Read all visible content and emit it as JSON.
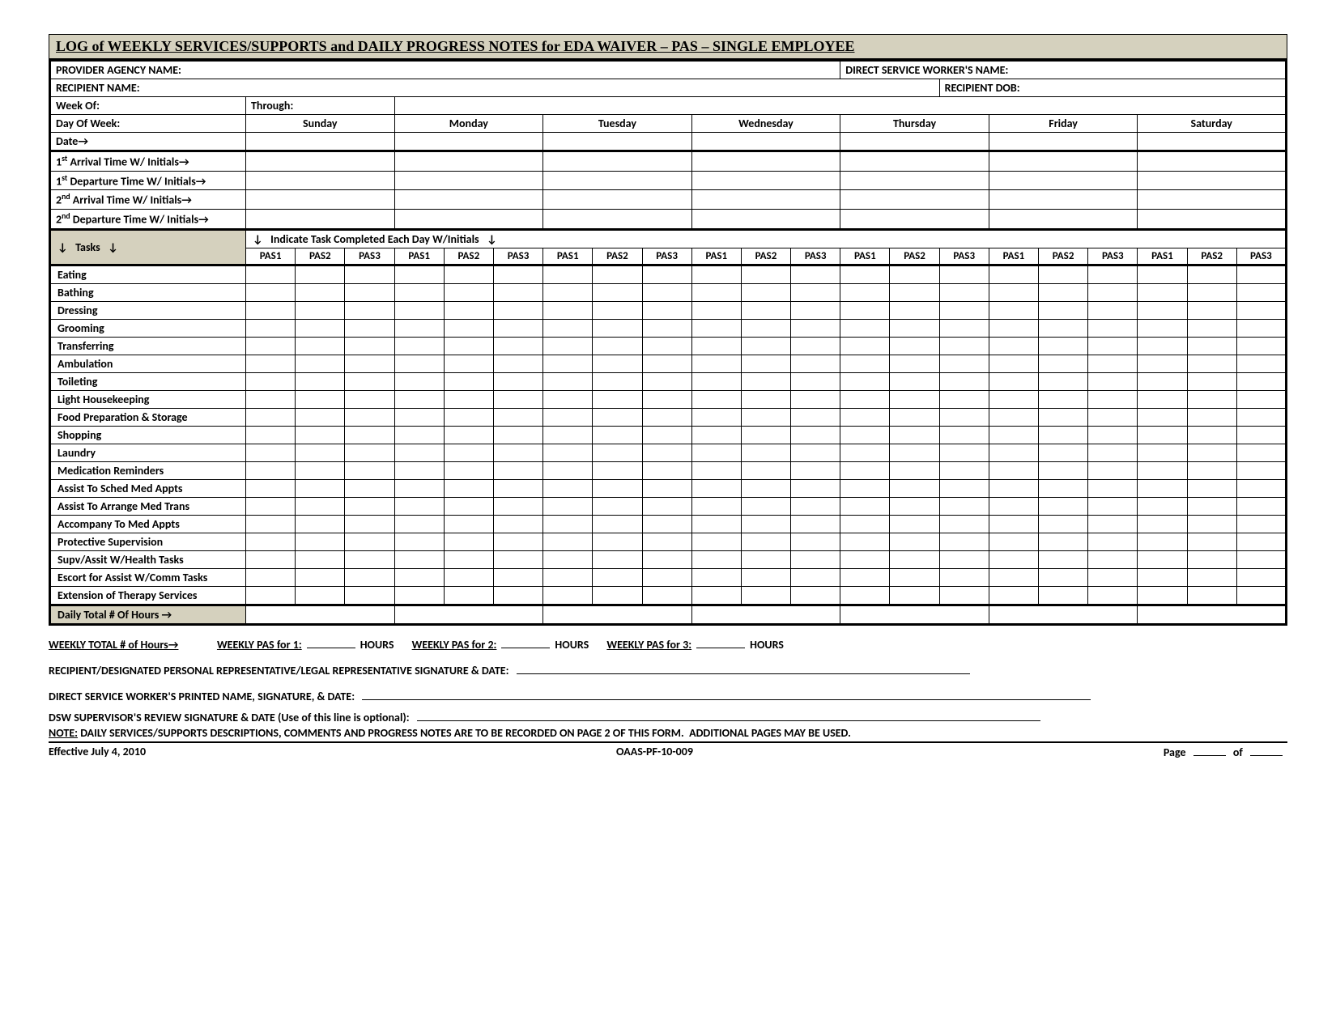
{
  "colors": {
    "shade": "#d5d1be",
    "border": "#000000",
    "bg": "#ffffff"
  },
  "title": "LOG of WEEKLY SERVICES/SUPPORTS and DAILY PROGRESS NOTES for EDA WAIVER – PAS – SINGLE EMPLOYEE",
  "header": {
    "provider_agency_label": "PROVIDER AGENCY NAME:",
    "dsw_name_label": "DIRECT SERVICE WORKER'S NAME:",
    "recipient_name_label": "RECIPIENT NAME:",
    "recipient_dob_label": "RECIPIENT DOB:",
    "week_of_label": "Week Of:",
    "through_label": "Through:",
    "day_of_week_label": "Day Of Week:",
    "date_label": "Date→"
  },
  "days": [
    "Sunday",
    "Monday",
    "Tuesday",
    "Wednesday",
    "Thursday",
    "Friday",
    "Saturday"
  ],
  "time_rows": [
    "1<sup>st</sup> Arrival Time W/ Initials→",
    "1<sup>st</sup> Departure Time W/ Initials→",
    "2<sup>nd</sup> Arrival Time W/ Initials→",
    "2<sup>nd</sup> Departure Time W/ Initials→"
  ],
  "tasks_corner": "↓   Tasks   ↓",
  "tasks_instruction": "↓   Indicate Task Completed Each Day W/Initials   ↓",
  "pas_labels": [
    "PAS1",
    "PAS2",
    "PAS3"
  ],
  "tasks": [
    "Eating",
    "Bathing",
    "Dressing",
    "Grooming",
    "Transferring",
    "Ambulation",
    "Toileting",
    "Light Housekeeping",
    "Food Preparation & Storage",
    "Shopping",
    "Laundry",
    "Medication Reminders",
    "Assist To Sched Med Appts",
    "Assist To Arrange Med Trans",
    "Accompany To Med Appts",
    "Protective Supervision",
    "Supv/Assit W/Health Tasks",
    "Escort for Assist W/Comm Tasks",
    "Extension of Therapy Services"
  ],
  "daily_total_label": "Daily Total # Of Hours →",
  "weekly": {
    "total_label": "WEEKLY TOTAL # of Hours→",
    "pas1_label": "WEEKLY PAS for 1:",
    "pas2_label": "WEEKLY PAS for 2:",
    "pas3_label": "WEEKLY PAS for 3:",
    "hours": "HOURS"
  },
  "sig": {
    "recipient": "RECIPIENT/DESIGNATED PERSONAL REPRESENTATIVE/LEGAL REPRESENTATIVE SIGNATURE & DATE:",
    "dsw": "DIRECT SERVICE WORKER'S PRINTED NAME, SIGNATURE, & DATE:",
    "supervisor": "DSW SUPERVISOR'S REVIEW SIGNATURE & DATE (Use of this line is optional):",
    "note_prefix": "NOTE:",
    "note": "DAILY SERVICES/SUPPORTS DESCRIPTIONS, COMMENTS AND PROGRESS NOTES ARE TO BE RECORDED ON PAGE 2 OF THIS FORM.  ADDITIONAL PAGES MAY BE USED."
  },
  "footer": {
    "effective": "Effective July 4, 2010",
    "form_no": "OAAS-PF-10-009",
    "page_label": "Page",
    "of_label": "of"
  }
}
